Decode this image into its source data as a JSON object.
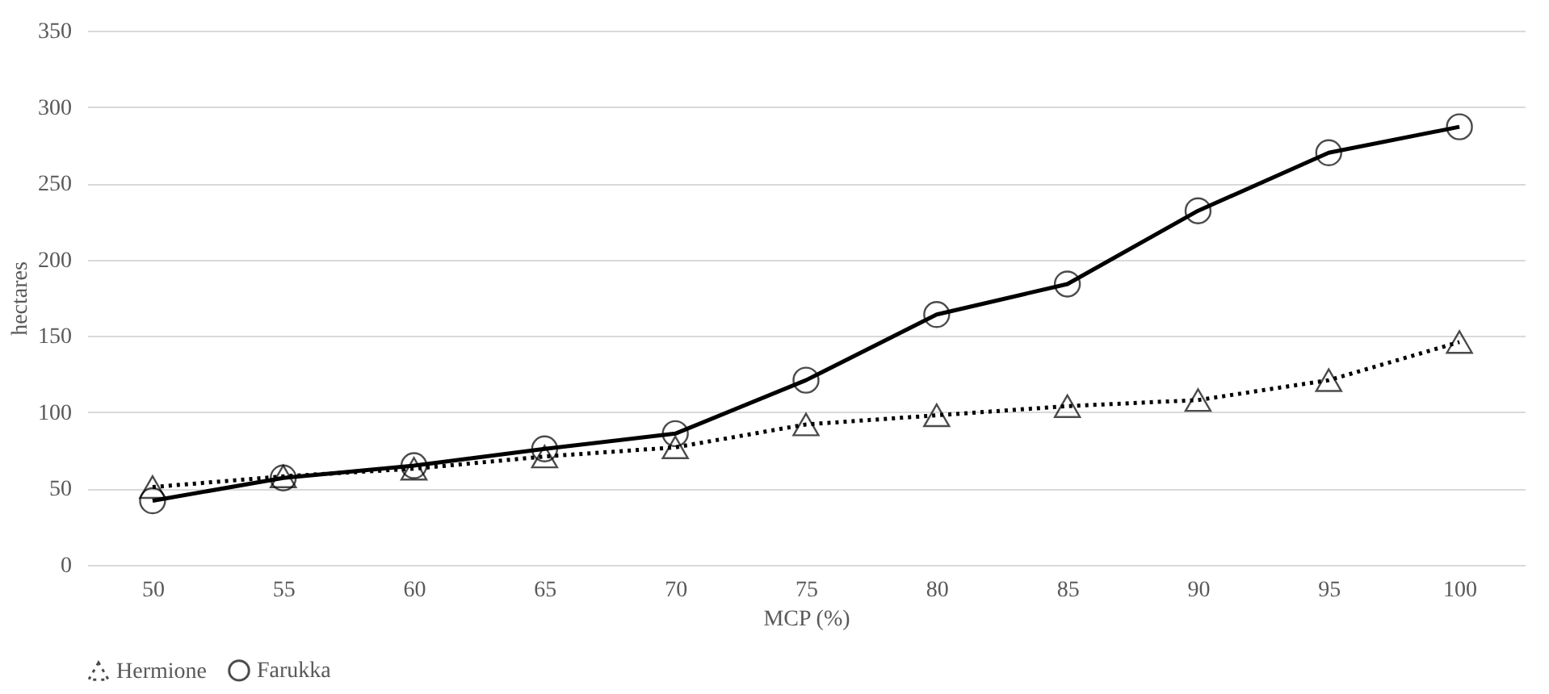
{
  "chart_data": {
    "type": "line",
    "xlabel": "MCP (%)",
    "ylabel": "hectares",
    "categories": [
      "50",
      "55",
      "60",
      "65",
      "70",
      "75",
      "80",
      "85",
      "90",
      "95",
      "100"
    ],
    "series": [
      {
        "name": "Hermione",
        "color": "#000000",
        "marker": "triangle",
        "line_style": "dotted",
        "values": [
          51,
          58,
          63,
          71,
          77,
          92,
          98,
          104,
          108,
          121,
          146
        ]
      },
      {
        "name": "Farukka",
        "color": "#000000",
        "marker": "circle",
        "line_style": "solid",
        "values": [
          42,
          57,
          65,
          76,
          86,
          121,
          164,
          184,
          232,
          270,
          287
        ]
      }
    ],
    "ylim": [
      0,
      350
    ],
    "yticks": [
      0,
      50,
      100,
      150,
      200,
      250,
      300,
      350
    ],
    "grid": "y",
    "legend": "bottom"
  }
}
